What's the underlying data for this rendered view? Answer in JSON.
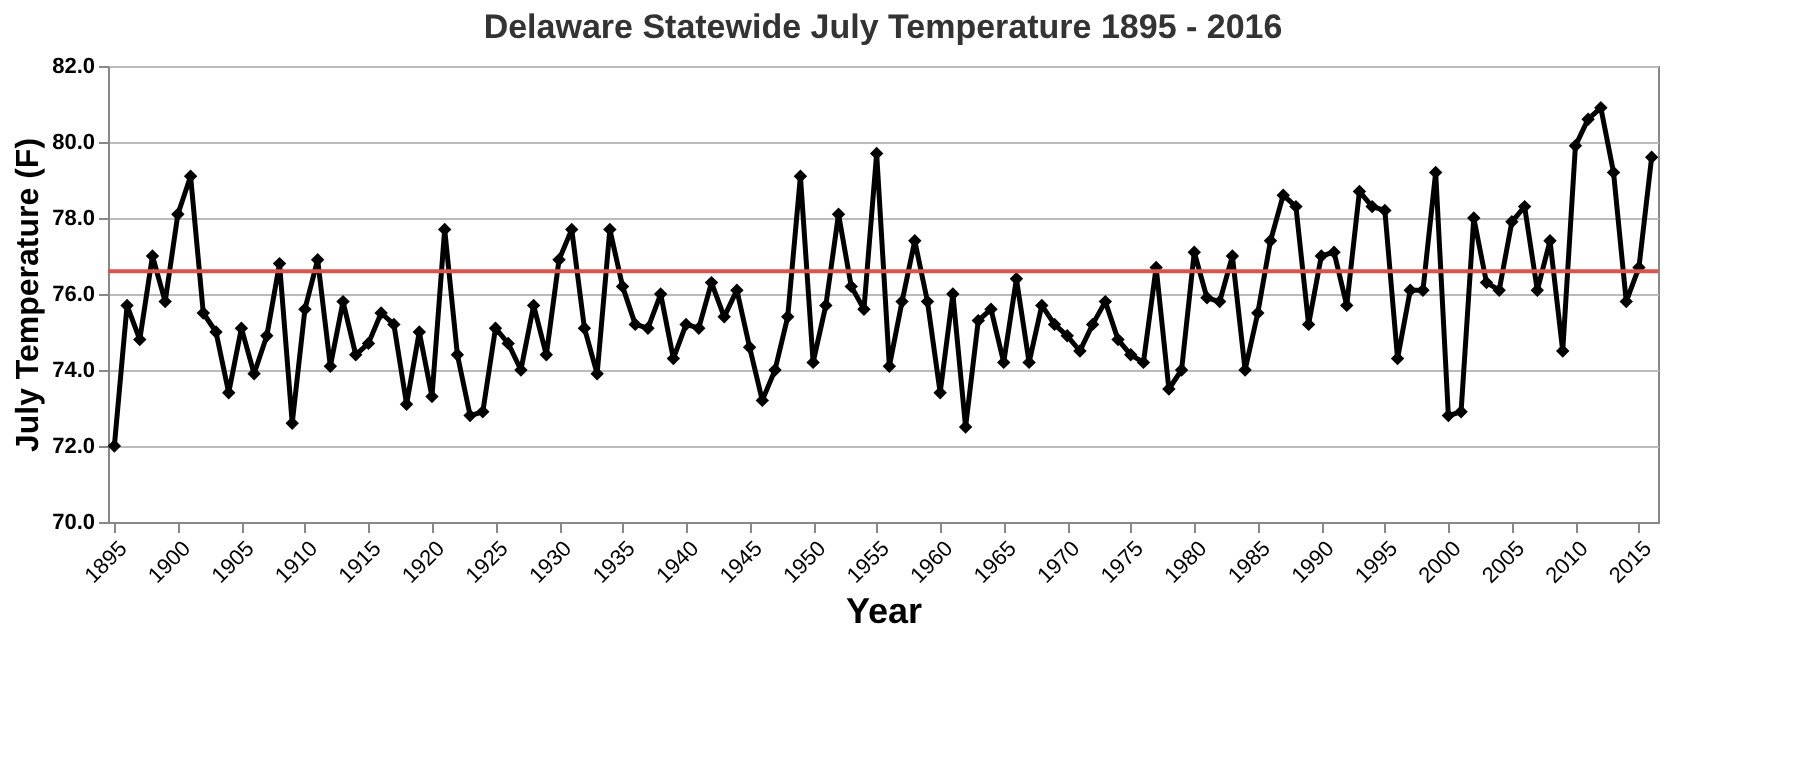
{
  "chart_data": {
    "type": "line",
    "title": "Delaware Statewide July Temperature 1895 - 2016",
    "xlabel": "Year",
    "ylabel": "July Temperature (F)",
    "x": [
      1895,
      1896,
      1897,
      1898,
      1899,
      1900,
      1901,
      1902,
      1903,
      1904,
      1905,
      1906,
      1907,
      1908,
      1909,
      1910,
      1911,
      1912,
      1913,
      1914,
      1915,
      1916,
      1917,
      1918,
      1919,
      1920,
      1921,
      1922,
      1923,
      1924,
      1925,
      1926,
      1927,
      1928,
      1929,
      1930,
      1931,
      1932,
      1933,
      1934,
      1935,
      1936,
      1937,
      1938,
      1939,
      1940,
      1941,
      1942,
      1943,
      1944,
      1945,
      1946,
      1947,
      1948,
      1949,
      1950,
      1951,
      1952,
      1953,
      1954,
      1955,
      1956,
      1957,
      1958,
      1959,
      1960,
      1961,
      1962,
      1963,
      1964,
      1965,
      1966,
      1967,
      1968,
      1969,
      1970,
      1971,
      1972,
      1973,
      1974,
      1975,
      1976,
      1977,
      1978,
      1979,
      1980,
      1981,
      1982,
      1983,
      1984,
      1985,
      1986,
      1987,
      1988,
      1989,
      1990,
      1991,
      1992,
      1993,
      1994,
      1995,
      1996,
      1997,
      1998,
      1999,
      2000,
      2001,
      2002,
      2003,
      2004,
      2005,
      2006,
      2007,
      2008,
      2009,
      2010,
      2011,
      2012,
      2013,
      2014,
      2015,
      2016
    ],
    "series": [
      {
        "color": "#000000",
        "values": [
          72.0,
          75.7,
          74.8,
          77.0,
          75.8,
          78.1,
          79.1,
          75.5,
          75.0,
          73.4,
          75.1,
          73.9,
          74.9,
          76.8,
          72.6,
          75.6,
          76.9,
          74.1,
          75.8,
          74.4,
          74.7,
          75.5,
          75.2,
          73.1,
          75.0,
          73.3,
          77.7,
          74.4,
          72.8,
          72.9,
          75.1,
          74.7,
          74.0,
          75.7,
          74.4,
          76.9,
          77.7,
          75.1,
          73.9,
          77.7,
          76.2,
          75.2,
          75.1,
          76.0,
          74.3,
          75.2,
          75.1,
          76.3,
          75.4,
          76.1,
          74.6,
          73.2,
          74.0,
          75.4,
          79.1,
          74.2,
          75.7,
          78.1,
          76.2,
          75.6,
          79.7,
          74.1,
          75.8,
          77.4,
          75.8,
          73.4,
          76.0,
          72.5,
          75.3,
          75.6,
          74.2,
          76.4,
          74.2,
          75.7,
          75.2,
          74.9,
          74.5,
          75.2,
          75.8,
          74.8,
          74.4,
          74.2,
          76.7,
          73.5,
          74.0,
          77.1,
          75.9,
          75.8,
          77.0,
          74.0,
          75.5,
          77.4,
          78.6,
          78.3,
          75.2,
          77.0,
          77.1,
          75.7,
          78.7,
          78.3,
          78.2,
          74.3,
          76.1,
          76.1,
          79.2,
          72.8,
          72.9,
          78.0,
          76.3,
          76.1,
          77.9,
          78.3,
          76.1,
          77.4,
          74.5,
          79.9,
          80.6,
          80.9,
          79.2,
          75.8,
          76.7,
          79.6
        ]
      }
    ],
    "xlim": [
      1894.5,
      2016.5
    ],
    "xticks": [
      1895,
      1900,
      1905,
      1910,
      1915,
      1920,
      1925,
      1930,
      1935,
      1940,
      1945,
      1950,
      1955,
      1960,
      1965,
      1970,
      1975,
      1980,
      1985,
      1990,
      1995,
      2000,
      2005,
      2010,
      2015
    ],
    "ylim": [
      70,
      82
    ],
    "yticks": [
      {
        "value": 70,
        "label": "70.0"
      },
      {
        "value": 72,
        "label": "72.0"
      },
      {
        "value": 74,
        "label": "74.0"
      },
      {
        "value": 76,
        "label": "76.0"
      },
      {
        "value": 78,
        "label": "78.0"
      },
      {
        "value": 80,
        "label": "80.0"
      },
      {
        "value": 82,
        "label": "82.0"
      }
    ],
    "ref_lines": [
      {
        "axis": "y",
        "value": 76.6,
        "color": "#d9534f"
      }
    ],
    "grid": "y",
    "marker": "diamond",
    "line_style": "solid"
  }
}
